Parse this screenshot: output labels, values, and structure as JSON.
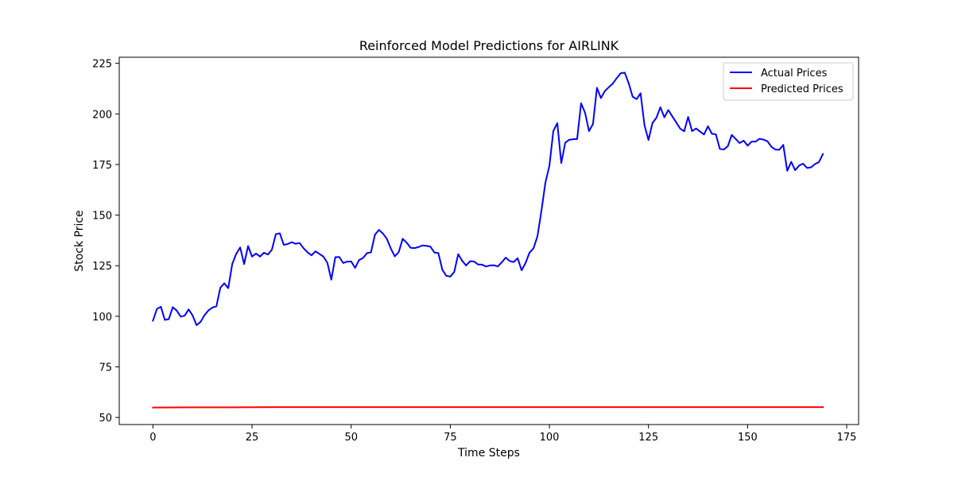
{
  "chart_data": {
    "type": "line",
    "title": "Reinforced Model Predictions for AIRLINK",
    "xlabel": "Time Steps",
    "ylabel": "Stock Price",
    "xlim": [
      -8.5,
      178
    ],
    "ylim": [
      46.5,
      228
    ],
    "xticks": [
      0,
      25,
      50,
      75,
      100,
      125,
      150,
      175
    ],
    "yticks": [
      50,
      75,
      100,
      125,
      150,
      175,
      200,
      225
    ],
    "grid": false,
    "legend_position": "upper right",
    "series": [
      {
        "name": "Actual Prices",
        "color": "#0000ff",
        "x": [
          0,
          1,
          2,
          3,
          4,
          5,
          6,
          7,
          8,
          9,
          10,
          11,
          12,
          13,
          14,
          15,
          16,
          17,
          18,
          19,
          20,
          21,
          22,
          23,
          24,
          25,
          26,
          27,
          28,
          29,
          30,
          31,
          32,
          33,
          34,
          35,
          36,
          37,
          38,
          39,
          40,
          41,
          42,
          43,
          44,
          45,
          46,
          47,
          48,
          49,
          50,
          51,
          52,
          53,
          54,
          55,
          56,
          57,
          58,
          59,
          60,
          61,
          62,
          63,
          64,
          65,
          66,
          67,
          68,
          69,
          70,
          71,
          72,
          73,
          74,
          75,
          76,
          77,
          78,
          79,
          80,
          81,
          82,
          83,
          84,
          85,
          86,
          87,
          88,
          89,
          90,
          91,
          92,
          93,
          94,
          95,
          96,
          97,
          98,
          99,
          100,
          101,
          102,
          103,
          104,
          105,
          106,
          107,
          108,
          109,
          110,
          111,
          112,
          113,
          114,
          115,
          116,
          117,
          118,
          119,
          120,
          121,
          122,
          123,
          124,
          125,
          126,
          127,
          128,
          129,
          130,
          131,
          132,
          133,
          134,
          135,
          136,
          137,
          138,
          139,
          140,
          141,
          142,
          143,
          144,
          145,
          146,
          147,
          148,
          149,
          150,
          151,
          152,
          153,
          154,
          155,
          156,
          157,
          158,
          159,
          160,
          161,
          162,
          163,
          164,
          165,
          166,
          167,
          168,
          169
        ],
        "values": [
          97.8,
          103.6,
          104.7,
          98.2,
          98.6,
          104.5,
          102.8,
          99.8,
          100.3,
          103.4,
          100.4,
          95.6,
          97.2,
          100.5,
          102.9,
          104.3,
          104.9,
          114.1,
          116.3,
          113.9,
          125.8,
          130.8,
          134,
          125.8,
          134.7,
          129.5,
          131,
          129.5,
          131.4,
          130.5,
          132.9,
          140.6,
          141,
          135.3,
          135.7,
          136.6,
          135.8,
          136.2,
          133.6,
          131.6,
          130.1,
          132.1,
          130.8,
          129.5,
          126.4,
          118.1,
          129.2,
          129.3,
          126.3,
          127,
          127.1,
          123.9,
          127.8,
          128.8,
          131.2,
          131.6,
          140.3,
          142.7,
          140.9,
          138.3,
          133.5,
          129.6,
          131.7,
          138.3,
          136.4,
          133.8,
          133.7,
          134.2,
          135,
          134.8,
          134.4,
          131.5,
          131.2,
          123,
          120,
          119.6,
          121.9,
          130.7,
          127.4,
          125.1,
          127.2,
          127.1,
          125.6,
          125.5,
          124.6,
          125.1,
          125.2,
          124.6,
          126.7,
          129,
          127.3,
          126.8,
          128.7,
          122.7,
          126.4,
          131.5,
          133.6,
          139.6,
          152.2,
          166.1,
          174.3,
          191.6,
          195.4,
          175.7,
          185.8,
          187.2,
          187.5,
          187.6,
          205.2,
          200.6,
          191.5,
          195,
          212.9,
          207.8,
          211.3,
          213.2,
          215,
          217.7,
          220.1,
          220.4,
          215.2,
          208.5,
          207.3,
          210.2,
          194.3,
          187.1,
          195.5,
          198.1,
          203.3,
          198.3,
          201.9,
          198.8,
          195.8,
          192.7,
          191.4,
          198.5,
          191.5,
          192.8,
          191.3,
          189.8,
          193.9,
          190.2,
          189.9,
          182.7,
          182.4,
          184,
          189.6,
          187.6,
          185.6,
          186.8,
          184.3,
          186.3,
          186.3,
          187.7,
          187.3,
          186.5,
          183.8,
          182.4,
          182.3,
          184.7,
          171.9,
          176.3,
          172.2,
          174.5,
          175.4,
          173.3,
          173.6,
          175.2,
          176.2,
          180.2
        ]
      },
      {
        "name": "Predicted Prices",
        "color": "#ff0000",
        "x": [
          0,
          10,
          20,
          30,
          40,
          50,
          60,
          70,
          80,
          90,
          100,
          110,
          120,
          130,
          140,
          150,
          160,
          169
        ],
        "values": [
          54.9,
          55.0,
          55.0,
          55.1,
          55.1,
          55.1,
          55.1,
          55.1,
          55.1,
          55.1,
          55.1,
          55.1,
          55.1,
          55.1,
          55.1,
          55.1,
          55.1,
          55.1
        ]
      }
    ]
  }
}
